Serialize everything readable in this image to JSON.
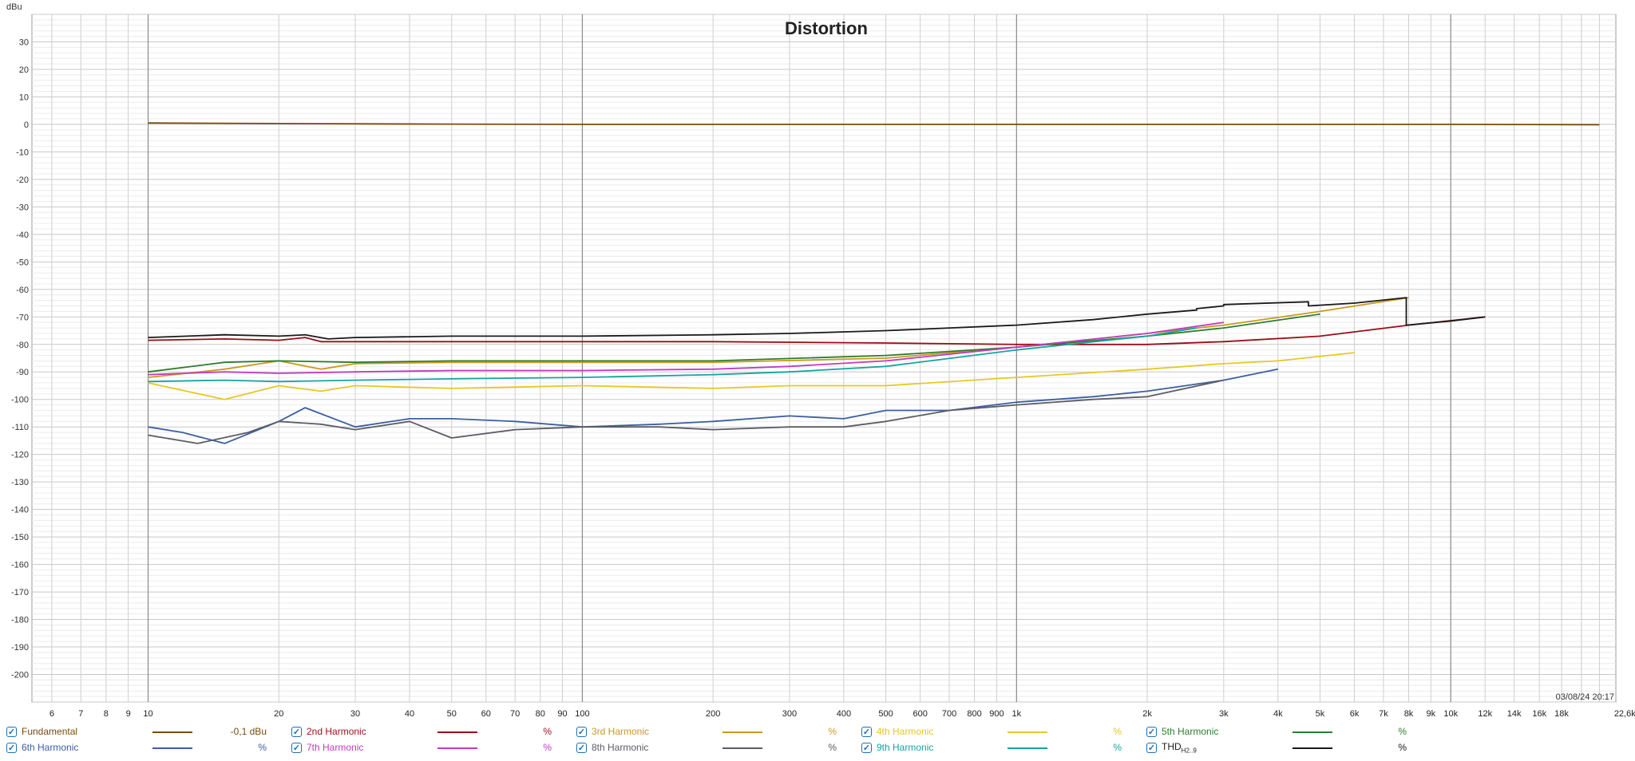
{
  "chart_data": {
    "type": "line",
    "title": "Distortion",
    "ylabel": "dBu",
    "xscale": "log",
    "xlim": [
      5.4,
      24000
    ],
    "ylim": [
      -210,
      40
    ],
    "grid": true,
    "timestamp": "03/08/24 20:17",
    "ytick_values": [
      30,
      20,
      10,
      0,
      -10,
      -20,
      -30,
      -40,
      -50,
      -60,
      -70,
      -80,
      -90,
      -100,
      -110,
      -120,
      -130,
      -140,
      -150,
      -160,
      -170,
      -180,
      -190,
      -200
    ],
    "ytick_labels": [
      "30",
      "20",
      "10",
      "0",
      "-10",
      "-20",
      "-30",
      "-40",
      "-50",
      "-60",
      "-70",
      "-80",
      "-90",
      "-100",
      "-110",
      "-120",
      "-130",
      "-140",
      "-150",
      "-160",
      "-170",
      "-180",
      "-190",
      "-200"
    ],
    "xtick_values": [
      6,
      7,
      8,
      9,
      10,
      20,
      30,
      40,
      50,
      60,
      70,
      80,
      90,
      100,
      200,
      300,
      400,
      500,
      600,
      700,
      800,
      900,
      1000,
      2000,
      3000,
      4000,
      5000,
      6000,
      7000,
      8000,
      9000,
      10000,
      12000,
      14000,
      16000,
      18000,
      22600
    ],
    "xtick_labels": [
      "6",
      "7",
      "8",
      "9",
      "10",
      "20",
      "30",
      "40",
      "50",
      "60",
      "70",
      "80",
      "90",
      "100",
      "200",
      "300",
      "400",
      "500",
      "600",
      "700",
      "800",
      "900",
      "1k",
      "2k",
      "3k",
      "4k",
      "5k",
      "6k",
      "7k",
      "8k",
      "9k",
      "10k",
      "12k",
      "14k",
      "16k",
      "18k",
      "22,6kHz"
    ],
    "series": [
      {
        "name": "Fundamental",
        "color": "#7a4a10",
        "x": [
          10,
          20,
          50,
          100,
          1000,
          10000,
          22000
        ],
        "y": [
          0.5,
          0.3,
          0.1,
          0.0,
          0.0,
          0.0,
          -0.1
        ]
      },
      {
        "name": "2nd Harmonic",
        "color": "#9b0d16",
        "x": [
          10,
          15,
          20,
          23,
          25,
          30,
          50,
          100,
          200,
          500,
          1000,
          2000,
          3000,
          5000,
          8000,
          12000
        ],
        "y": [
          -78.5,
          -78,
          -78.5,
          -77.5,
          -79,
          -79,
          -79,
          -79,
          -79,
          -79.5,
          -80,
          -80,
          -79,
          -77,
          -73,
          -70
        ]
      },
      {
        "name": "3rd Harmonic",
        "color": "#c99a1c",
        "x": [
          10,
          15,
          20,
          25,
          30,
          50,
          100,
          200,
          500,
          1000,
          2000,
          3000,
          5000,
          8000
        ],
        "y": [
          -92,
          -89,
          -86,
          -89,
          -87,
          -86.5,
          -86.5,
          -86.5,
          -85,
          -81,
          -76,
          -73,
          -68,
          -63
        ]
      },
      {
        "name": "4th Harmonic",
        "color": "#e5c826",
        "x": [
          10,
          15,
          20,
          25,
          30,
          50,
          100,
          200,
          300,
          500,
          1000,
          2000,
          3000,
          4000,
          6000
        ],
        "y": [
          -94,
          -100,
          -95,
          -97,
          -95,
          -96,
          -95,
          -96,
          -95,
          -95,
          -92,
          -89,
          -87,
          -86,
          -83
        ]
      },
      {
        "name": "5th Harmonic",
        "color": "#2e7d2e",
        "x": [
          10,
          15,
          20,
          30,
          50,
          100,
          200,
          500,
          1000,
          2000,
          3000,
          5000
        ],
        "y": [
          -90,
          -86.5,
          -86,
          -86.5,
          -86,
          -86,
          -86,
          -84,
          -81,
          -77,
          -74,
          -69
        ]
      },
      {
        "name": "6th Harmonic",
        "color": "#3b5fa0",
        "x": [
          10,
          12,
          15,
          20,
          23,
          30,
          40,
          50,
          70,
          100,
          150,
          200,
          300,
          400,
          500,
          700,
          1000,
          1500,
          2000,
          3000,
          4000
        ],
        "y": [
          -110,
          -112,
          -116,
          -108,
          -103,
          -110,
          -107,
          -107,
          -108,
          -110,
          -109,
          -108,
          -106,
          -107,
          -104,
          -104,
          -101,
          -99,
          -97,
          -93,
          -89
        ]
      },
      {
        "name": "7th Harmonic",
        "color": "#c03cc0",
        "x": [
          10,
          15,
          20,
          30,
          50,
          100,
          200,
          300,
          500,
          1000,
          2000,
          3000
        ],
        "y": [
          -91,
          -90,
          -90.5,
          -90,
          -89.5,
          -89.5,
          -89,
          -88,
          -86,
          -81,
          -76,
          -72
        ]
      },
      {
        "name": "8th Harmonic",
        "color": "#5c5c66",
        "x": [
          10,
          13,
          17,
          20,
          25,
          30,
          40,
          50,
          70,
          100,
          150,
          200,
          300,
          400,
          500,
          700,
          1000,
          1500,
          2000,
          3000
        ],
        "y": [
          -113,
          -116,
          -112,
          -108,
          -109,
          -111,
          -108,
          -114,
          -111,
          -110,
          -110,
          -111,
          -110,
          -110,
          -108,
          -104,
          -102,
          -100,
          -99,
          -93
        ]
      },
      {
        "name": "9th Harmonic",
        "color": "#17a3a3",
        "x": [
          10,
          15,
          20,
          30,
          50,
          100,
          200,
          300,
          500,
          1000,
          2000,
          2600
        ],
        "y": [
          -93.5,
          -93,
          -93.5,
          -93,
          -92.5,
          -92,
          -91,
          -90,
          -88,
          -82,
          -77,
          -74
        ]
      },
      {
        "name": "THD",
        "name_sub": "H2..9",
        "color": "#1a1a1a",
        "x": [
          10,
          15,
          20,
          23,
          26,
          30,
          50,
          100,
          200,
          300,
          500,
          1000,
          1500,
          2000,
          2600,
          2600,
          3000,
          3000,
          4700,
          4700,
          6000,
          7900,
          7900,
          10000,
          12000
        ],
        "y": [
          -77.5,
          -76.5,
          -77,
          -76.5,
          -78,
          -77.5,
          -77,
          -77,
          -76.5,
          -76,
          -75,
          -73,
          -71,
          -69,
          -67.5,
          -67,
          -66,
          -65.5,
          -64.5,
          -66,
          -65,
          -63,
          -73,
          -71.5,
          -70
        ]
      }
    ]
  },
  "legend": [
    {
      "label": "Fundamental",
      "value": "-0,1 dBu",
      "color": "#7a4a10",
      "checked": "✓"
    },
    {
      "label": "2nd Harmonic",
      "value": "%",
      "color": "#9b0d16",
      "checked": "✓"
    },
    {
      "label": "3rd Harmonic",
      "value": "%",
      "color": "#c99a1c",
      "checked": "✓"
    },
    {
      "label": "4th Harmonic",
      "value": "%",
      "color": "#e5c826",
      "checked": "✓"
    },
    {
      "label": "5th Harmonic",
      "value": "%",
      "color": "#2e7d2e",
      "checked": "✓"
    },
    {
      "label": "6th Harmonic",
      "value": "%",
      "color": "#3b5fa0",
      "checked": "✓"
    },
    {
      "label": "7th Harmonic",
      "value": "%",
      "color": "#c03cc0",
      "checked": "✓"
    },
    {
      "label": "8th Harmonic",
      "value": "%",
      "color": "#5c5c66",
      "checked": "✓"
    },
    {
      "label": "9th Harmonic",
      "value": "%",
      "color": "#17a3a3",
      "checked": "✓"
    },
    {
      "label": "THD",
      "label_sub": "H2..9",
      "value": "%",
      "color": "#1a1a1a",
      "checked": "✓"
    }
  ]
}
